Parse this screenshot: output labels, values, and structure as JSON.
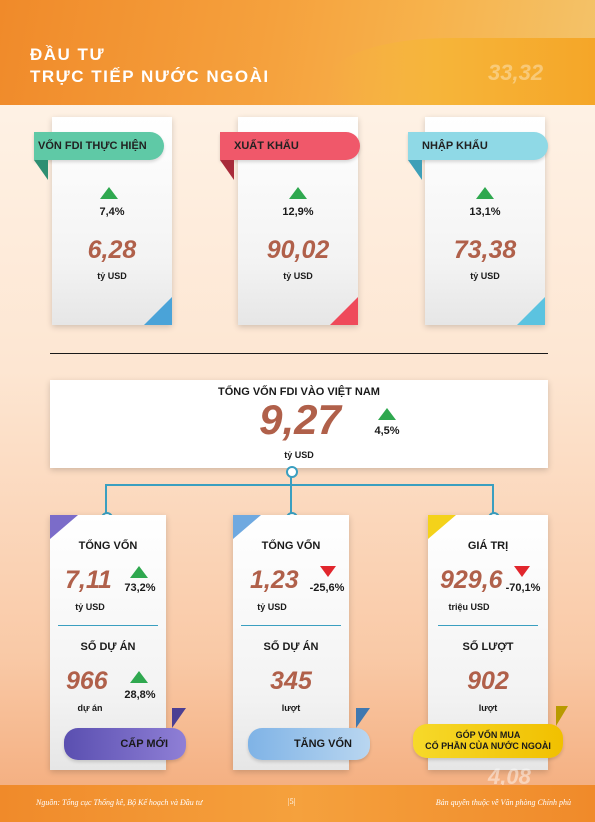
{
  "header": {
    "title_line1": "ĐẦU TƯ",
    "title_line2": "TRỰC TIẾP NƯỚC NGOÀI",
    "bg_number": "33,32"
  },
  "top_cards": [
    {
      "label": "VỐN FDI THỰC HIỆN",
      "change": "7,4%",
      "value": "6,28",
      "unit": "tỷ USD",
      "ribbon_color": "#5fc9a6",
      "corner_color": "#4aa3d8"
    },
    {
      "label": "XUẤT KHẨU",
      "change": "12,9%",
      "value": "90,02",
      "unit": "tỷ USD",
      "ribbon_color": "#f0586a",
      "corner_color": "#ef4a5a"
    },
    {
      "label": "NHẬP KHẨU",
      "change": "13,1%",
      "value": "73,38",
      "unit": "tỷ USD",
      "ribbon_color": "#8fd9e6",
      "corner_color": "#5bc3e0"
    }
  ],
  "total": {
    "title": "TỔNG VỐN FDI VÀO VIỆT NAM",
    "value": "9,27",
    "change": "4,5%",
    "unit": "tỷ USD"
  },
  "bottom_cards": [
    {
      "metric1_label": "TỔNG VỐN",
      "metric1_value": "7,11",
      "metric1_change": "73,2%",
      "metric1_unit": "tỷ USD",
      "metric1_trend": "up",
      "metric2_label": "SỐ DỰ ÁN",
      "metric2_value": "966",
      "metric2_change": "28,8%",
      "metric2_unit": "dự án",
      "metric2_trend": "up",
      "button_label": "CẤP MỚI",
      "accent": "#7b6cc9"
    },
    {
      "metric1_label": "TỔNG VỐN",
      "metric1_value": "1,23",
      "metric1_change": "-25,6%",
      "metric1_unit": "tỷ USD",
      "metric1_trend": "down",
      "metric2_label": "SỐ DỰ ÁN",
      "metric2_value": "345",
      "metric2_unit": "lượt",
      "button_label": "TĂNG VỐN",
      "accent": "#6fa9e0"
    },
    {
      "metric1_label": "GIÁ TRỊ",
      "metric1_value": "929,6",
      "metric1_change": "-70,1%",
      "metric1_unit": "triệu USD",
      "metric1_trend": "down",
      "metric2_label": "SỐ LƯỢT",
      "metric2_value": "902",
      "metric2_unit": "lượt",
      "button_label_line1": "GÓP VỐN MUA",
      "button_label_line2": "CỔ PHẦN CỦA NƯỚC NGOÀI",
      "accent": "#f4d21a"
    }
  ],
  "footer": {
    "source": "Nguồn: Tổng cục Thống kê, Bộ Kế hoạch và Đầu tư",
    "page": "|5|",
    "copyright": "Bản quyền thuộc về Văn phòng Chính phủ",
    "bg_number": "4,08"
  }
}
